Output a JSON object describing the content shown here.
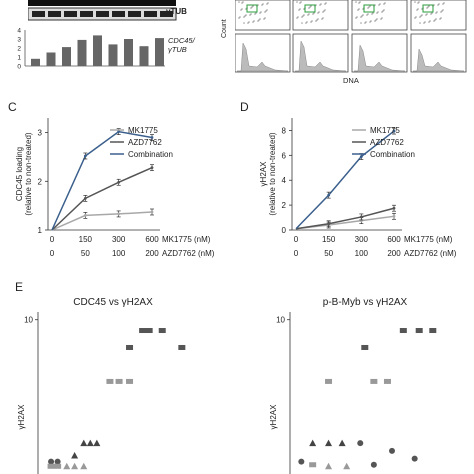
{
  "top": {
    "blot_label": "γTUB",
    "bar_label": "CDC45/ γTUB",
    "bar_ticks": [
      "4",
      "3",
      "2",
      "1",
      "0"
    ],
    "bar_values": [
      0.8,
      1.5,
      2.1,
      2.9,
      3.4,
      2.4,
      3.0,
      2.2,
      3.1
    ],
    "flow_xlabel": "DNA",
    "flow_ylabel": "Count"
  },
  "panels": {
    "c": "C",
    "d": "D",
    "e": "E"
  },
  "xconditions": {
    "mk_label": "MK1775 (nM)",
    "azd_label": "AZD7762 (nM)",
    "mk_values": [
      "0",
      "150",
      "300",
      "600"
    ],
    "azd_values": [
      "0",
      "50",
      "100",
      "200"
    ]
  },
  "chart_data": [
    {
      "type": "line",
      "ylabel": "CDC45 loading (relative to non-treated)",
      "ylim": [
        1,
        3.3
      ],
      "yticks": [
        "1",
        "2",
        "3"
      ],
      "x": [
        0,
        1,
        2,
        3
      ],
      "series": [
        {
          "name": "MK1775",
          "values": [
            1.0,
            1.3,
            1.33,
            1.37
          ],
          "color": "#a8a8a8"
        },
        {
          "name": "AZD7762",
          "values": [
            1.0,
            1.65,
            1.98,
            2.28
          ],
          "color": "#555555"
        },
        {
          "name": "Combination",
          "values": [
            1.0,
            2.52,
            3.02,
            2.9
          ],
          "color": "#3a5f8c"
        }
      ]
    },
    {
      "type": "line",
      "ylabel": "γH2AX (relative to non-treated)",
      "ylim": [
        0,
        9
      ],
      "yticks": [
        "0",
        "2",
        "4",
        "6",
        "8"
      ],
      "x": [
        0,
        1,
        2,
        3
      ],
      "series": [
        {
          "name": "MK1775",
          "values": [
            0.1,
            0.4,
            0.75,
            1.1
          ],
          "color": "#a8a8a8"
        },
        {
          "name": "AZD7762",
          "values": [
            0.1,
            0.5,
            1.05,
            1.75
          ],
          "color": "#555555"
        },
        {
          "name": "Combination",
          "values": [
            0.1,
            2.8,
            5.9,
            7.95
          ],
          "color": "#3a5f8c"
        }
      ]
    },
    {
      "type": "scatter",
      "title": "CDC45 vs γH2AX",
      "ylabel": "γH2AX",
      "ytick": "10",
      "points": [
        {
          "x": 0.05,
          "y": 9.3,
          "shape": "rect",
          "color": "#555555"
        },
        {
          "x": 0.065,
          "y": 9.3,
          "shape": "rect",
          "color": "#555555"
        },
        {
          "x": 0.055,
          "y": 9.3,
          "shape": "rect",
          "color": "#555555"
        },
        {
          "x": 0.04,
          "y": 8.2,
          "shape": "rect",
          "color": "#555555"
        },
        {
          "x": 0.08,
          "y": 8.2,
          "shape": "rect",
          "color": "#555555"
        },
        {
          "x": 0.032,
          "y": 6.0,
          "shape": "rect",
          "color": "#999999"
        },
        {
          "x": 0.025,
          "y": 6.0,
          "shape": "rect",
          "color": "#999999"
        },
        {
          "x": 0.04,
          "y": 6.0,
          "shape": "rect",
          "color": "#999999"
        },
        {
          "x": 0.005,
          "y": 2.0,
          "shape": "tri",
          "color": "#444444"
        },
        {
          "x": 0.01,
          "y": 2.0,
          "shape": "tri",
          "color": "#444444"
        },
        {
          "x": 0.015,
          "y": 2.0,
          "shape": "tri",
          "color": "#444444"
        },
        {
          "x": -0.002,
          "y": 1.2,
          "shape": "tri",
          "color": "#444444"
        },
        {
          "x": -0.015,
          "y": 0.8,
          "shape": "circle",
          "color": "#555555"
        },
        {
          "x": -0.02,
          "y": 0.8,
          "shape": "circle",
          "color": "#555555"
        },
        {
          "x": -0.02,
          "y": 0.5,
          "shape": "rect",
          "color": "#999999"
        },
        {
          "x": -0.015,
          "y": 0.5,
          "shape": "rect",
          "color": "#999999"
        },
        {
          "x": -0.008,
          "y": 0.5,
          "shape": "tri",
          "color": "#999999"
        },
        {
          "x": -0.002,
          "y": 0.5,
          "shape": "tri",
          "color": "#999999"
        },
        {
          "x": 0.005,
          "y": 0.5,
          "shape": "tri",
          "color": "#999999"
        }
      ]
    },
    {
      "type": "scatter",
      "title": "p-B-Myb vs γH2AX",
      "ylabel": "γH2AX",
      "ytick": "10",
      "points": [
        {
          "x": 0.45,
          "y": 9.3,
          "shape": "rect",
          "color": "#555555"
        },
        {
          "x": 0.52,
          "y": 9.3,
          "shape": "rect",
          "color": "#555555"
        },
        {
          "x": 0.58,
          "y": 9.3,
          "shape": "rect",
          "color": "#555555"
        },
        {
          "x": 0.28,
          "y": 8.2,
          "shape": "rect",
          "color": "#555555"
        },
        {
          "x": 0.32,
          "y": 6.0,
          "shape": "rect",
          "color": "#999999"
        },
        {
          "x": 0.38,
          "y": 6.0,
          "shape": "rect",
          "color": "#999999"
        },
        {
          "x": 0.12,
          "y": 6.0,
          "shape": "rect",
          "color": "#999999"
        },
        {
          "x": 0.05,
          "y": 2.0,
          "shape": "tri",
          "color": "#444444"
        },
        {
          "x": 0.12,
          "y": 2.0,
          "shape": "tri",
          "color": "#444444"
        },
        {
          "x": 0.18,
          "y": 2.0,
          "shape": "tri",
          "color": "#444444"
        },
        {
          "x": 0.26,
          "y": 2.0,
          "shape": "circle",
          "color": "#555555"
        },
        {
          "x": 0.4,
          "y": 1.5,
          "shape": "circle",
          "color": "#555555"
        },
        {
          "x": 0.5,
          "y": 1.0,
          "shape": "circle",
          "color": "#555555"
        },
        {
          "x": 0.0,
          "y": 0.8,
          "shape": "circle",
          "color": "#555555"
        },
        {
          "x": 0.05,
          "y": 0.6,
          "shape": "rect",
          "color": "#999999"
        },
        {
          "x": 0.12,
          "y": 0.5,
          "shape": "tri",
          "color": "#999999"
        },
        {
          "x": 0.2,
          "y": 0.5,
          "shape": "tri",
          "color": "#999999"
        },
        {
          "x": 0.32,
          "y": 0.6,
          "shape": "circle",
          "color": "#555555"
        }
      ]
    }
  ]
}
